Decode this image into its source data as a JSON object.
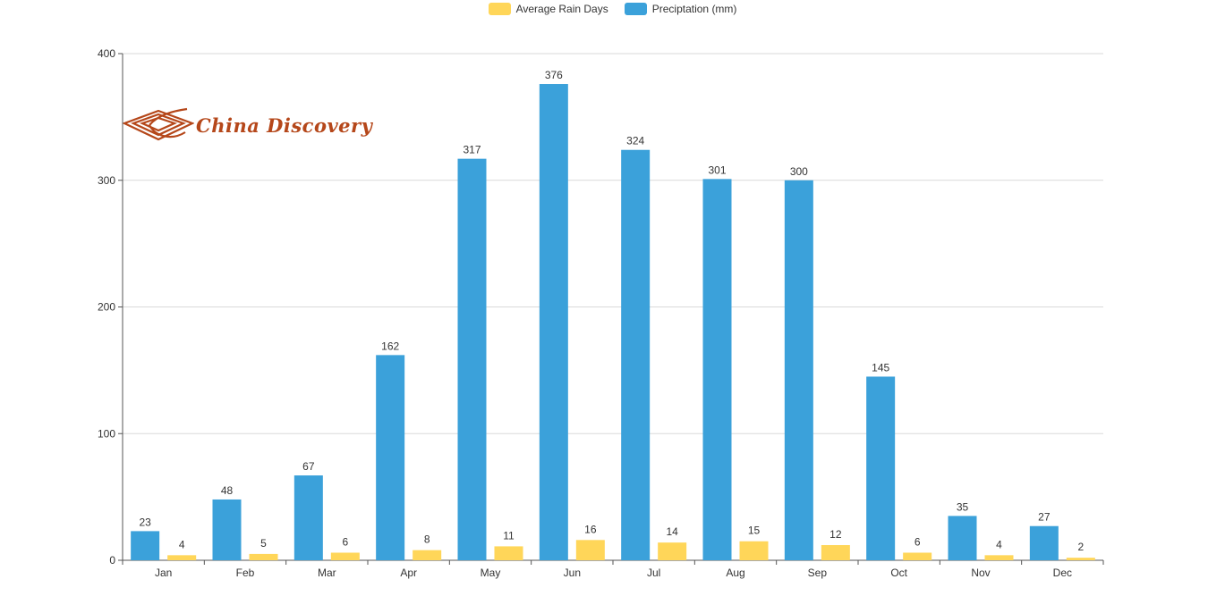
{
  "legend": {
    "rain_days_label": "Average Rain Days",
    "precip_label": "Preciptation (mm)"
  },
  "logo": {
    "text": "China Discovery",
    "color": "#b5471a"
  },
  "colors": {
    "precipitation": "#3ba1da",
    "rain_days": "#ffd659",
    "grid": "#d9d9d9",
    "axis": "#555555",
    "label": "#333333"
  },
  "chart_data": {
    "type": "bar",
    "categories": [
      "Jan",
      "Feb",
      "Mar",
      "Apr",
      "May",
      "Jun",
      "Jul",
      "Aug",
      "Sep",
      "Oct",
      "Nov",
      "Dec"
    ],
    "series": [
      {
        "name": "Preciptation (mm)",
        "values": [
          23,
          48,
          67,
          162,
          317,
          376,
          324,
          301,
          300,
          145,
          35,
          27
        ]
      },
      {
        "name": "Average Rain Days",
        "values": [
          4,
          5,
          6,
          8,
          11,
          16,
          14,
          15,
          12,
          6,
          4,
          2
        ]
      }
    ],
    "ylim": [
      0,
      400
    ],
    "yticks": [
      0,
      100,
      200,
      300,
      400
    ],
    "grid": true,
    "legend_position": "top-center",
    "data_labels": true
  }
}
